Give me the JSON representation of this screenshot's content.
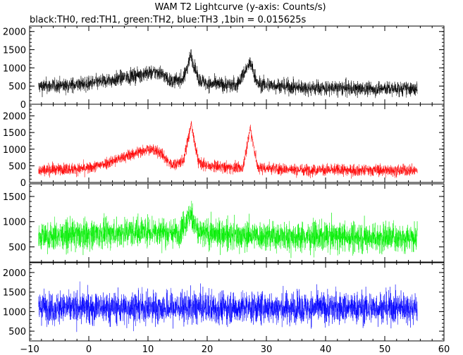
{
  "chart_data": {
    "type": "line",
    "title": "WAM T2 Lightcurve (y-axis: Counts/s)",
    "subtitle": "black:TH0, red:TH1, green:TH2, blue:TH3 ,1bin = 0.015625s",
    "xlabel": "",
    "ylabel": "",
    "xlim": [
      -10,
      60
    ],
    "x_ticks": [
      -10,
      0,
      10,
      20,
      30,
      40,
      50,
      60
    ],
    "x_range": [
      -8.5,
      55.5
    ],
    "grid": false,
    "panels": [
      {
        "name": "TH0",
        "color": "#000000",
        "ylim": [
          0,
          2150
        ],
        "y_ticks": [
          0,
          500,
          1000,
          1500,
          2000
        ],
        "baseline": [
          [
            -8.5,
            480
          ],
          [
            0,
            560
          ],
          [
            5,
            700
          ],
          [
            10,
            860
          ],
          [
            12,
            880
          ],
          [
            14,
            620
          ],
          [
            16,
            700
          ],
          [
            17.2,
            1350
          ],
          [
            18.5,
            700
          ],
          [
            20,
            560
          ],
          [
            25,
            520
          ],
          [
            27.3,
            1150
          ],
          [
            28.5,
            560
          ],
          [
            35,
            460
          ],
          [
            45,
            430
          ],
          [
            55.5,
            420
          ]
        ],
        "noise": 190
      },
      {
        "name": "TH1",
        "color": "#ff0000",
        "ylim": [
          0,
          2350
        ],
        "y_ticks": [
          0,
          500,
          1000,
          1500,
          2000
        ],
        "baseline": [
          [
            -8.5,
            380
          ],
          [
            0,
            420
          ],
          [
            5,
            700
          ],
          [
            10,
            1020
          ],
          [
            12,
            900
          ],
          [
            14,
            520
          ],
          [
            16,
            650
          ],
          [
            17.3,
            1750
          ],
          [
            18.5,
            620
          ],
          [
            20,
            480
          ],
          [
            26,
            430
          ],
          [
            27.3,
            1650
          ],
          [
            28.5,
            450
          ],
          [
            35,
            380
          ],
          [
            45,
            370
          ],
          [
            55.5,
            360
          ]
        ],
        "noise": 165
      },
      {
        "name": "TH2",
        "color": "#00ee00",
        "ylim": [
          200,
          1750
        ],
        "y_ticks": [
          500,
          1000,
          1500
        ],
        "baseline": [
          [
            -8.5,
            700
          ],
          [
            5,
            780
          ],
          [
            10,
            830
          ],
          [
            15,
            760
          ],
          [
            17.3,
            1150
          ],
          [
            18.5,
            780
          ],
          [
            25,
            720
          ],
          [
            40,
            700
          ],
          [
            55.5,
            690
          ]
        ],
        "noise": 270
      },
      {
        "name": "TH3",
        "color": "#0000ff",
        "ylim": [
          250,
          2250
        ],
        "y_ticks": [
          500,
          1000,
          1500,
          2000
        ],
        "baseline": [
          [
            -8.5,
            1100
          ],
          [
            20,
            1100
          ],
          [
            40,
            1090
          ],
          [
            55.5,
            1100
          ]
        ],
        "noise": 380
      }
    ]
  }
}
